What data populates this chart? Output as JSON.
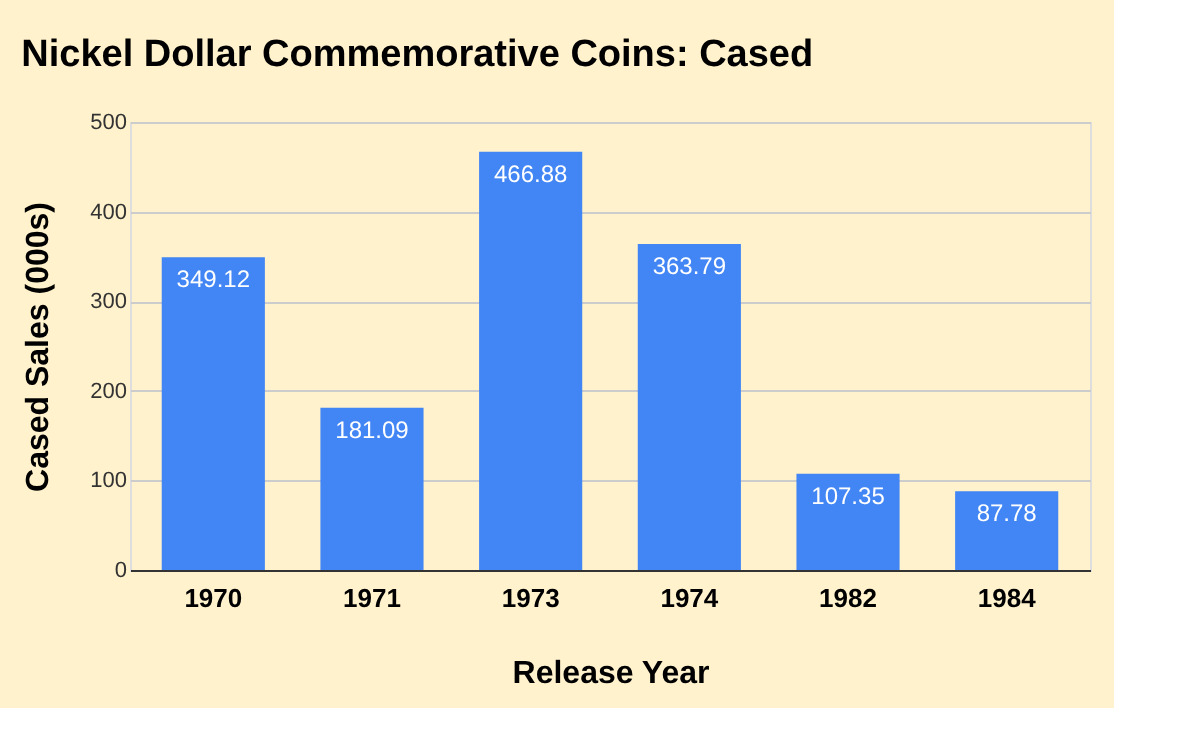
{
  "chart_data": {
    "type": "bar",
    "title": "Nickel Dollar Commemorative Coins: Cased",
    "xlabel": "Release Year",
    "ylabel": "Cased Sales (000s)",
    "categories": [
      "1970",
      "1971",
      "1973",
      "1974",
      "1982",
      "1984"
    ],
    "values": [
      349.12,
      181.09,
      466.88,
      363.79,
      107.35,
      87.78
    ],
    "color": "#4285f4",
    "ylim": [
      0,
      500
    ],
    "yticks": [
      0,
      100,
      200,
      300,
      400,
      500
    ],
    "grid": "y",
    "data_labels": true
  }
}
